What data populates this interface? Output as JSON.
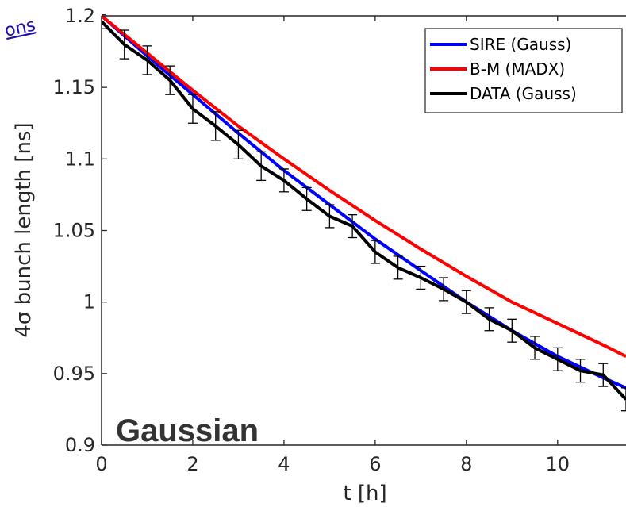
{
  "chart_data": {
    "type": "line",
    "title": "",
    "xlabel": "t [h]",
    "ylabel": "4σ bunch length [ns]",
    "xlim": [
      0,
      11.5
    ],
    "ylim": [
      0.9,
      1.2
    ],
    "xticks": [
      0,
      2,
      4,
      6,
      8,
      10
    ],
    "yticks": [
      0.9,
      0.95,
      1,
      1.05,
      1.1,
      1.15,
      1.2
    ],
    "xtick_labels": [
      "0",
      "2",
      "4",
      "6",
      "8",
      "10"
    ],
    "ytick_labels": [
      "0.9",
      "0.95",
      "1",
      "1.05",
      "1.1",
      "1.15",
      "1.2"
    ],
    "grid": false,
    "legend_position": "top-right",
    "annotation": "Gaussian",
    "corner_text": "ons",
    "series": [
      {
        "name": "SIRE (Gauss)",
        "color": "#0000ff",
        "x": [
          0,
          1,
          2,
          3,
          4,
          5,
          6,
          7,
          8,
          9,
          10,
          11,
          11.5
        ],
        "y": [
          1.2,
          1.172,
          1.145,
          1.118,
          1.092,
          1.068,
          1.044,
          1.022,
          1.0,
          0.98,
          0.962,
          0.947,
          0.94
        ]
      },
      {
        "name": "B-M (MADX)",
        "color": "#ff0000",
        "x": [
          0,
          1,
          2,
          3,
          4,
          5,
          6,
          7,
          8,
          9,
          10,
          11,
          11.5
        ],
        "y": [
          1.2,
          1.174,
          1.148,
          1.123,
          1.1,
          1.078,
          1.057,
          1.037,
          1.018,
          1.0,
          0.985,
          0.97,
          0.962
        ]
      },
      {
        "name": "DATA (Gauss)",
        "color": "#000000",
        "x": [
          0,
          0.5,
          1,
          1.5,
          2,
          2.5,
          3,
          3.5,
          4,
          4.5,
          5,
          5.5,
          6,
          6.5,
          7,
          7.5,
          8,
          8.5,
          9,
          9.5,
          10,
          10.5,
          11,
          11.5
        ],
        "y": [
          1.196,
          1.18,
          1.169,
          1.155,
          1.135,
          1.123,
          1.11,
          1.095,
          1.085,
          1.072,
          1.06,
          1.053,
          1.035,
          1.024,
          1.017,
          1.009,
          1.0,
          0.988,
          0.98,
          0.968,
          0.96,
          0.952,
          0.949,
          0.932
        ],
        "err": [
          0.005,
          0.01,
          0.01,
          0.01,
          0.01,
          0.01,
          0.01,
          0.01,
          0.008,
          0.008,
          0.008,
          0.008,
          0.008,
          0.008,
          0.008,
          0.008,
          0.008,
          0.008,
          0.008,
          0.008,
          0.008,
          0.008,
          0.008,
          0.008
        ]
      }
    ]
  }
}
